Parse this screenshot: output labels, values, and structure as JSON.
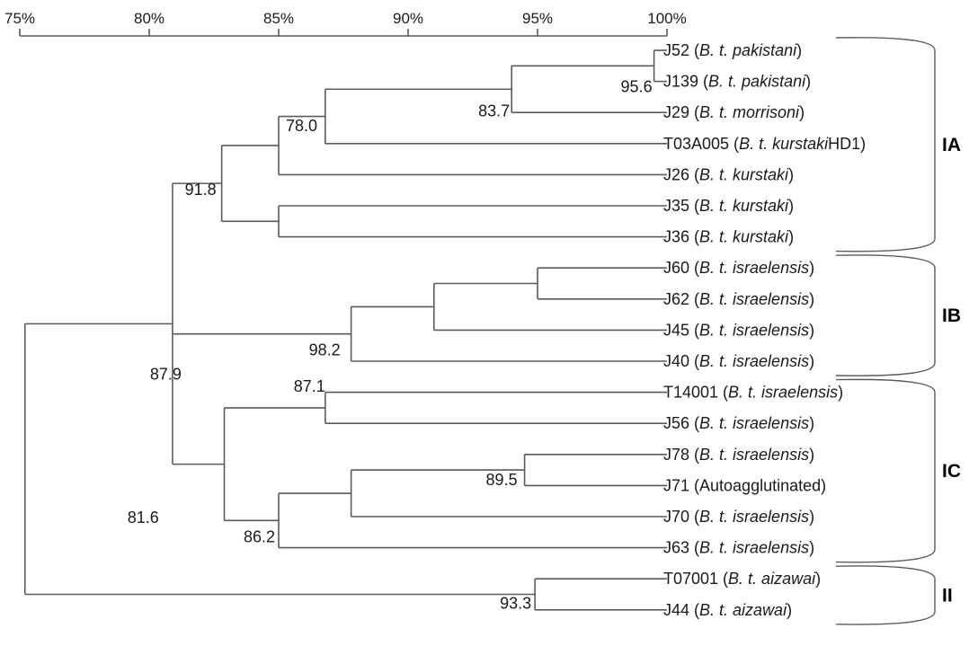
{
  "scale": {
    "ticks": [
      "75%",
      "80%",
      "85%",
      "90%",
      "95%",
      "100%"
    ],
    "tick_values": [
      75,
      80,
      85,
      90,
      95,
      100
    ]
  },
  "leaves": [
    {
      "id": "J52",
      "pre": "J52 (",
      "taxon": "B. t. pakistani",
      "post": ")"
    },
    {
      "id": "J139",
      "pre": "J139 (",
      "taxon": "B. t. pakistani",
      "post": ")"
    },
    {
      "id": "J29",
      "pre": "J29 (",
      "taxon": "B. t. morrisoni",
      "post": ")"
    },
    {
      "id": "T03A005",
      "pre": "T03A005 (",
      "taxon": "B. t. kurstaki",
      "post": "HD1)"
    },
    {
      "id": "J26",
      "pre": "J26 (",
      "taxon": "B. t. kurstaki",
      "post": ")"
    },
    {
      "id": "J35",
      "pre": "J35 (",
      "taxon": "B. t. kurstaki",
      "post": ")"
    },
    {
      "id": "J36",
      "pre": "J36 (",
      "taxon": "B. t. kurstaki",
      "post": ")"
    },
    {
      "id": "J60",
      "pre": "J60 (",
      "taxon": "B. t. israelensis",
      "post": ")"
    },
    {
      "id": "J62",
      "pre": "J62 (",
      "taxon": "B. t. israelensis",
      "post": ")"
    },
    {
      "id": "J45",
      "pre": "J45 (",
      "taxon": "B. t. israelensis",
      "post": ")"
    },
    {
      "id": "J40",
      "pre": "J40 (",
      "taxon": "B. t. israelensis",
      "post": ")"
    },
    {
      "id": "T14001",
      "pre": "T14001 (",
      "taxon": "B. t. israelensis",
      "post": ")"
    },
    {
      "id": "J56",
      "pre": "J56 (",
      "taxon": "B. t. israelensis",
      "post": ")"
    },
    {
      "id": "J78",
      "pre": "J78 (",
      "taxon": "B. t. israelensis",
      "post": ")"
    },
    {
      "id": "J71",
      "pre": "J71 (Autoagglutinated)",
      "taxon": "",
      "post": ""
    },
    {
      "id": "J70",
      "pre": "J70 (",
      "taxon": "B. t. israelensis",
      "post": ")"
    },
    {
      "id": "J63",
      "pre": "J63 (",
      "taxon": "B. t. israelensis",
      "post": ")"
    },
    {
      "id": "T07001",
      "pre": "T07001 (",
      "taxon": "B. t. aizawai",
      "post": ")"
    },
    {
      "id": "J44",
      "pre": "J44 (",
      "taxon": "B. t. aizawai",
      "post": ")"
    }
  ],
  "nodes": [
    {
      "sim": 99.5,
      "children": [
        "L:J52",
        "L:J139"
      ]
    },
    {
      "sim": 94.0,
      "children": [
        "N:0",
        "L:J29"
      ]
    },
    {
      "sim": 86.8,
      "children": [
        "N:1",
        "L:T03A005"
      ]
    },
    {
      "sim": 85.0,
      "children": [
        "N:2",
        "L:J26"
      ]
    },
    {
      "sim": 85.0,
      "children": [
        "L:J35",
        "L:J36"
      ]
    },
    {
      "sim": 82.8,
      "children": [
        "N:3",
        "N:4"
      ]
    },
    {
      "sim": 95.0,
      "children": [
        "L:J60",
        "L:J62"
      ]
    },
    {
      "sim": 91.0,
      "children": [
        "N:6",
        "L:J45"
      ]
    },
    {
      "sim": 87.8,
      "children": [
        "N:7",
        "L:J40"
      ]
    },
    {
      "sim": 86.8,
      "children": [
        "L:T14001",
        "L:J56"
      ]
    },
    {
      "sim": 94.5,
      "children": [
        "L:J78",
        "L:J71"
      ]
    },
    {
      "sim": 87.8,
      "children": [
        "N:10",
        "L:J70"
      ]
    },
    {
      "sim": 85.0,
      "children": [
        "N:11",
        "L:J63"
      ]
    },
    {
      "sim": 82.9,
      "children": [
        "N:9",
        "N:12"
      ]
    },
    {
      "sim": 80.9,
      "children": [
        "N:5",
        "N:8",
        "N:13"
      ]
    },
    {
      "sim": 94.9,
      "children": [
        "L:T07001",
        "L:J44"
      ]
    },
    {
      "sim": 75.2,
      "children": [
        "N:14",
        "N:15"
      ]
    }
  ],
  "node_labels": [
    {
      "text": "95.6",
      "node": 0
    },
    {
      "text": "83.7",
      "node": 1
    },
    {
      "text": "78.0",
      "node": 3
    },
    {
      "text": "91.8",
      "node": 5
    },
    {
      "text": "81.6",
      "node": 16
    },
    {
      "text": "98.2",
      "node": 8
    },
    {
      "text": "87.1",
      "node": 9
    },
    {
      "text": "89.5",
      "node": 10
    },
    {
      "text": "87.9",
      "node": 14
    },
    {
      "text": "86.2",
      "node": 12
    },
    {
      "text": "93.3",
      "node": 15
    }
  ],
  "groups": [
    {
      "label": "IA",
      "from": 0,
      "to": 6
    },
    {
      "label": "IB",
      "from": 7,
      "to": 10
    },
    {
      "label": "IC",
      "from": 11,
      "to": 16
    },
    {
      "label": "II",
      "from": 17,
      "to": 18
    }
  ],
  "colors": {
    "line": "#5a5a5a",
    "text": "#1a1a1a"
  }
}
